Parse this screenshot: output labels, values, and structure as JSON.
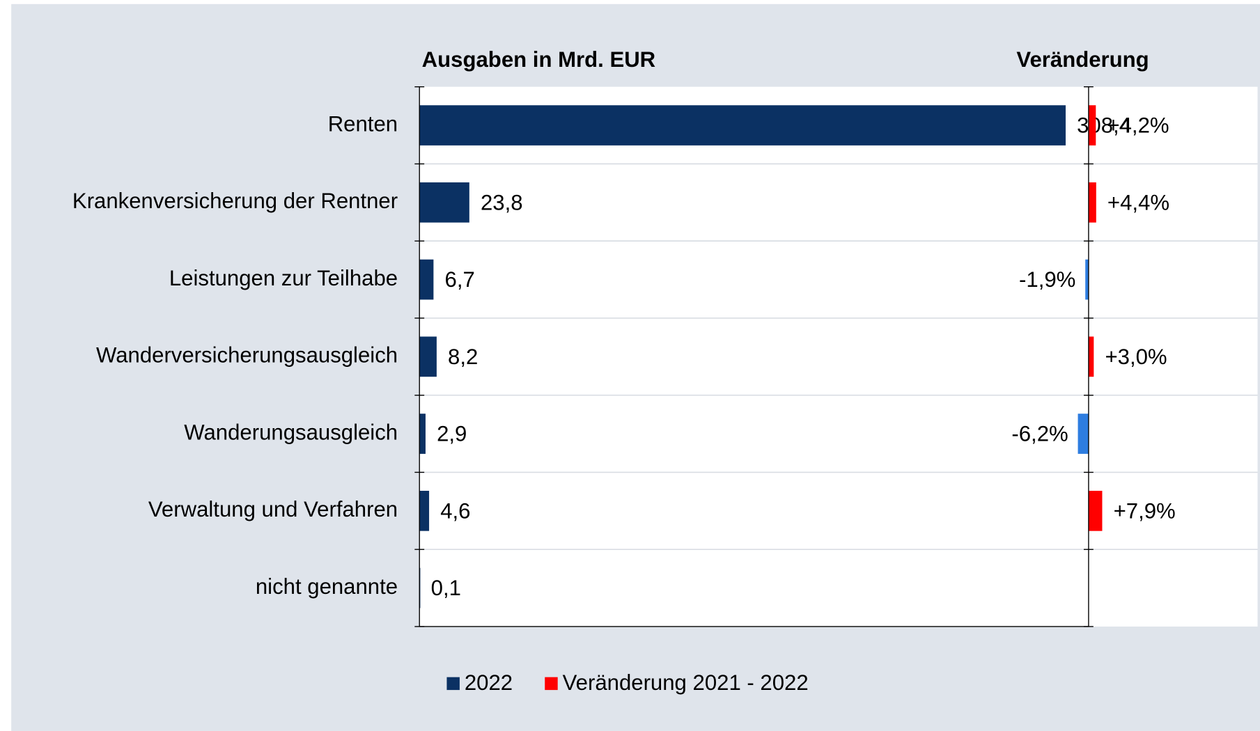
{
  "chart_data": {
    "type": "bar",
    "orientation": "horizontal",
    "title": "Ausgaben in Mrd. EUR",
    "change_title": "Veränderung",
    "categories": [
      "Renten",
      "Krankenversicherung der Rentner",
      "Leistungen zur Teilhabe",
      "Wanderversicherungsausgleich",
      "Wanderungsausgleich",
      "Verwaltung und Verfahren",
      "nicht genannte"
    ],
    "xlim": [
      0,
      400
    ],
    "x2lim": [
      -388,
      98
    ],
    "series": [
      {
        "name": "2022",
        "color": "#0b3163",
        "values": [
          308.4,
          23.8,
          6.7,
          8.2,
          2.9,
          4.6,
          0.1
        ],
        "value_labels": [
          "308,4",
          "23,8",
          "6,7",
          "8,2",
          "2,9",
          "4,6",
          "0,1"
        ]
      },
      {
        "name": "Veränderung 2021 - 2022",
        "color": "#ff0000",
        "negative_color": "#2e7de0",
        "axis": "x2",
        "values": [
          4.2,
          4.4,
          -1.9,
          3.0,
          -6.2,
          7.9,
          null
        ],
        "value_labels": [
          "+4,2%",
          "+4,4%",
          "-1,9%",
          "+3,0%",
          "-6,2%",
          "+7,9%",
          null
        ]
      }
    ]
  }
}
